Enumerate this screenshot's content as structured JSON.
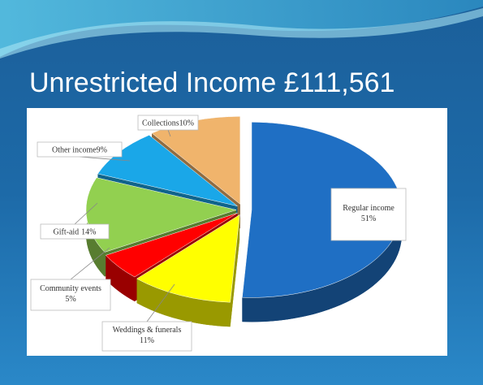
{
  "chart_data": {
    "type": "pie",
    "title": "Unrestricted Income £111,561",
    "categories": [
      "Regular income",
      "Weddings & funerals",
      "Community events",
      "Gift-aid",
      "Other income",
      "Collections"
    ],
    "values": [
      51,
      11,
      5,
      14,
      9,
      10
    ],
    "value_labels": [
      "51%",
      "11%",
      "5%",
      "14%",
      "9%",
      "10%"
    ],
    "colors": [
      "#1f6fc4",
      "#ffff00",
      "#ff0000",
      "#92d050",
      "#1aa7e8",
      "#f0b46c"
    ]
  }
}
